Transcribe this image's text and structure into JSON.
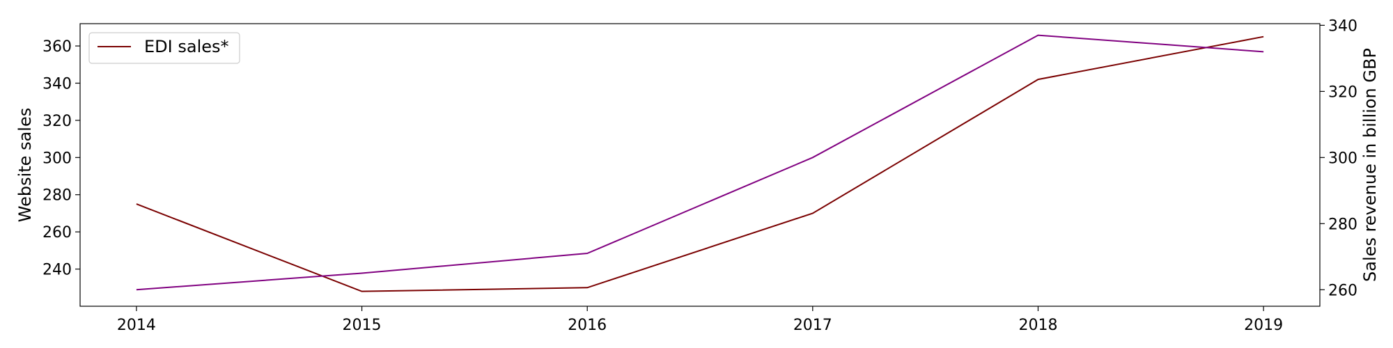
{
  "chart_data": {
    "type": "line",
    "x": [
      "2014",
      "2015",
      "2016",
      "2017",
      "2018",
      "2019"
    ],
    "x_range": [
      2013.75,
      2019.25
    ],
    "y_left": {
      "label": "Website sales",
      "range": [
        220,
        372
      ],
      "ticks": [
        240,
        260,
        280,
        300,
        320,
        340,
        360
      ]
    },
    "y_right": {
      "label": "Sales revenue in billion GBP",
      "range": [
        255,
        340.5
      ],
      "ticks": [
        260,
        280,
        300,
        320,
        340
      ]
    },
    "series": [
      {
        "name": "EDI sales*",
        "axis": "left",
        "color": "#7a0000",
        "values": [
          275,
          228,
          230,
          270,
          342,
          365
        ]
      },
      {
        "axis": "right",
        "color": "#800080",
        "values": [
          260,
          265,
          271,
          300,
          337,
          332
        ]
      }
    ],
    "legend": {
      "position": "top-left"
    },
    "grid": false
  }
}
